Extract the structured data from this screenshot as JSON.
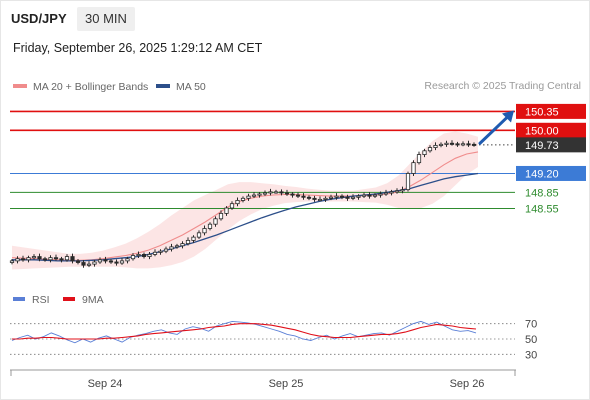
{
  "header": {
    "symbol": "USD/JPY",
    "interval": "30 MIN",
    "datetime": "Friday, September 26, 2025 1:29:12 AM CET",
    "research": "Research © 2025 Trading Central"
  },
  "colors": {
    "resistance": "#e01010",
    "pivot": "#3c7bd6",
    "support": "#2e8b2e",
    "candle": "#2a2a2a",
    "ma20": "#f08c8c",
    "ma50": "#2c4f8a",
    "band_fill": "#fbe1e1",
    "price_tag": "#333333",
    "arrow": "#1f5bb0",
    "rsi": "#5a7fd6",
    "rsi_ma": "#e0101a"
  },
  "legend": [
    {
      "label": "MA 20 + Bollinger Bands",
      "color": "#f08c8c"
    },
    {
      "label": "MA 50",
      "color": "#2c4f8a"
    }
  ],
  "levels": [
    {
      "value": 150.35,
      "label": "150.35",
      "kind": "resistance"
    },
    {
      "value": 150.0,
      "label": "150.00",
      "kind": "resistance"
    },
    {
      "value": 149.73,
      "label": "149.73",
      "kind": "last"
    },
    {
      "value": 149.2,
      "label": "149.20",
      "kind": "pivot"
    },
    {
      "value": 148.85,
      "label": "148.85",
      "kind": "support"
    },
    {
      "value": 148.55,
      "label": "148.55",
      "kind": "support"
    }
  ],
  "rsi_legend": [
    {
      "label": "RSI",
      "color": "#5a7fd6"
    },
    {
      "label": "9MA",
      "color": "#e0101a"
    }
  ],
  "rsi_ticks": [
    70,
    50,
    30
  ],
  "x_labels": [
    "Sep 24",
    "Sep 25",
    "Sep 26"
  ],
  "chart_data": [
    {
      "type": "line",
      "title": "USD/JPY 30 MIN",
      "xlabel": "",
      "ylabel": "",
      "ylim": [
        147.3,
        150.45
      ],
      "grid": false,
      "legend_position": "top-left",
      "x_labels": [
        "Sep 24",
        "Sep 25",
        "Sep 26"
      ],
      "series": [
        {
          "name": "USD/JPY",
          "values": [
            147.58,
            147.62,
            147.6,
            147.64,
            147.66,
            147.62,
            147.6,
            147.64,
            147.62,
            147.6,
            147.66,
            147.58,
            147.55,
            147.5,
            147.52,
            147.56,
            147.6,
            147.58,
            147.56,
            147.54,
            147.58,
            147.62,
            147.68,
            147.7,
            147.66,
            147.7,
            147.74,
            147.76,
            147.8,
            147.84,
            147.86,
            147.9,
            147.96,
            148.02,
            148.1,
            148.18,
            148.26,
            148.36,
            148.46,
            148.56,
            148.64,
            148.7,
            148.74,
            148.78,
            148.8,
            148.82,
            148.84,
            148.86,
            148.86,
            148.84,
            148.82,
            148.8,
            148.78,
            148.76,
            148.74,
            148.72,
            148.72,
            148.74,
            148.76,
            148.78,
            148.76,
            148.74,
            148.76,
            148.78,
            148.8,
            148.78,
            148.8,
            148.82,
            148.84,
            148.86,
            148.88,
            148.9,
            149.2,
            149.4,
            149.55,
            149.62,
            149.68,
            149.72,
            149.74,
            149.76,
            149.75,
            149.74,
            149.75,
            149.74,
            149.73
          ]
        },
        {
          "name": "MA 20",
          "values": [
            147.64,
            147.63,
            147.62,
            147.61,
            147.6,
            147.59,
            147.59,
            147.6,
            147.62,
            147.65,
            147.68,
            147.72,
            147.78,
            147.86,
            147.96,
            148.06,
            148.18,
            148.3,
            148.44,
            148.58,
            148.68,
            148.74,
            148.78,
            148.8,
            148.81,
            148.81,
            148.8,
            148.79,
            148.78,
            148.78,
            148.78,
            148.79,
            148.8,
            148.82,
            148.86,
            148.96,
            149.08,
            149.22,
            149.36,
            149.48,
            149.56,
            149.6
          ]
        },
        {
          "name": "MA 50",
          "values": [
            147.6,
            147.6,
            147.6,
            147.59,
            147.58,
            147.58,
            147.58,
            147.59,
            147.6,
            147.62,
            147.64,
            147.66,
            147.7,
            147.75,
            147.8,
            147.86,
            147.92,
            147.99,
            148.06,
            148.14,
            148.22,
            148.3,
            148.38,
            148.45,
            148.52,
            148.58,
            148.63,
            148.68,
            148.72,
            148.75,
            148.78,
            148.8,
            148.82,
            148.85,
            148.88,
            148.92,
            148.98,
            149.04,
            149.1,
            149.14,
            149.17,
            149.2
          ]
        }
      ]
    },
    {
      "type": "line",
      "title": "RSI",
      "xlabel": "",
      "ylabel": "",
      "ylim": [
        20,
        80
      ],
      "grid": false,
      "legend_position": "top-left",
      "series": [
        {
          "name": "RSI",
          "values": [
            48,
            52,
            55,
            50,
            53,
            58,
            54,
            49,
            45,
            50,
            46,
            51,
            54,
            50,
            46,
            52,
            55,
            57,
            60,
            62,
            58,
            56,
            63,
            66,
            64,
            60,
            67,
            70,
            73,
            72,
            71,
            69,
            66,
            63,
            60,
            56,
            54,
            50,
            48,
            52,
            55,
            50,
            54,
            57,
            53,
            55,
            57,
            58,
            55,
            60,
            65,
            70,
            73,
            69,
            72,
            67,
            62,
            60,
            61,
            58
          ]
        },
        {
          "name": "9MA",
          "values": [
            50,
            50,
            51,
            51,
            52,
            52,
            51,
            50,
            50,
            50,
            50,
            50,
            51,
            51,
            52,
            53,
            54,
            56,
            57,
            58,
            59,
            60,
            61,
            62,
            63,
            65,
            66,
            67,
            69,
            70,
            70,
            70,
            69,
            68,
            66,
            64,
            62,
            59,
            56,
            54,
            53,
            52,
            52,
            52,
            53,
            54,
            55,
            56,
            56,
            57,
            59,
            62,
            65,
            67,
            69,
            68,
            67,
            65,
            64,
            63
          ]
        }
      ]
    }
  ]
}
